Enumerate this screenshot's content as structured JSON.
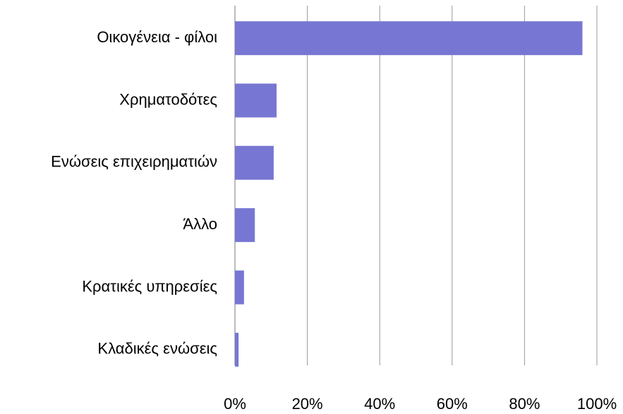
{
  "chart_data": {
    "type": "bar",
    "orientation": "horizontal",
    "categories": [
      "Οικογένεια - φίλοι",
      "Χρηματοδότες",
      "Ενώσεις επιχειρηματιών",
      "Άλλο",
      "Κρατικές υπηρεσίες",
      "Κλαδικές ενώσεις"
    ],
    "values": [
      96,
      11.5,
      10.7,
      5.5,
      2.5,
      1
    ],
    "color": "#7777d3",
    "xlim": [
      0,
      100
    ],
    "xticks": [
      {
        "value": 0,
        "label": "0%"
      },
      {
        "value": 20,
        "label": "20%"
      },
      {
        "value": 40,
        "label": "40%"
      },
      {
        "value": 60,
        "label": "60%"
      },
      {
        "value": 80,
        "label": "80%"
      },
      {
        "value": 100,
        "label": "100%"
      }
    ],
    "grid": true
  }
}
